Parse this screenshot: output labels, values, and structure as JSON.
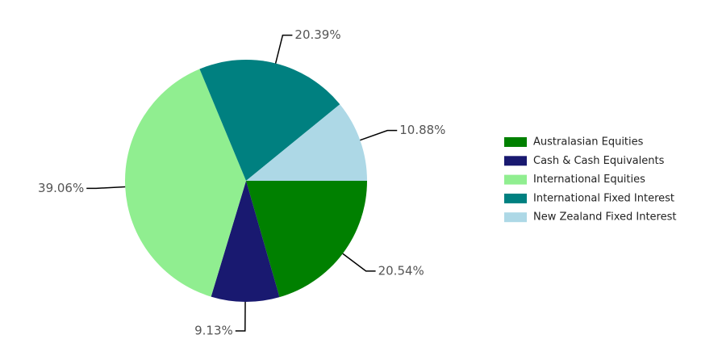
{
  "chart_data": {
    "type": "pie",
    "categories": [
      "Australasian Equities",
      "Cash & Cash Equivalents",
      "International Equities",
      "International Fixed Interest",
      "New Zealand Fixed Interest"
    ],
    "values": [
      20.54,
      9.13,
      39.06,
      20.39,
      10.88
    ],
    "value_labels": [
      "20.54%",
      "9.13%",
      "39.06%",
      "20.39%",
      "10.88%"
    ],
    "colors": [
      "#008000",
      "#191970",
      "#90ee90",
      "#008080",
      "#add8e6"
    ],
    "legend": "right"
  }
}
